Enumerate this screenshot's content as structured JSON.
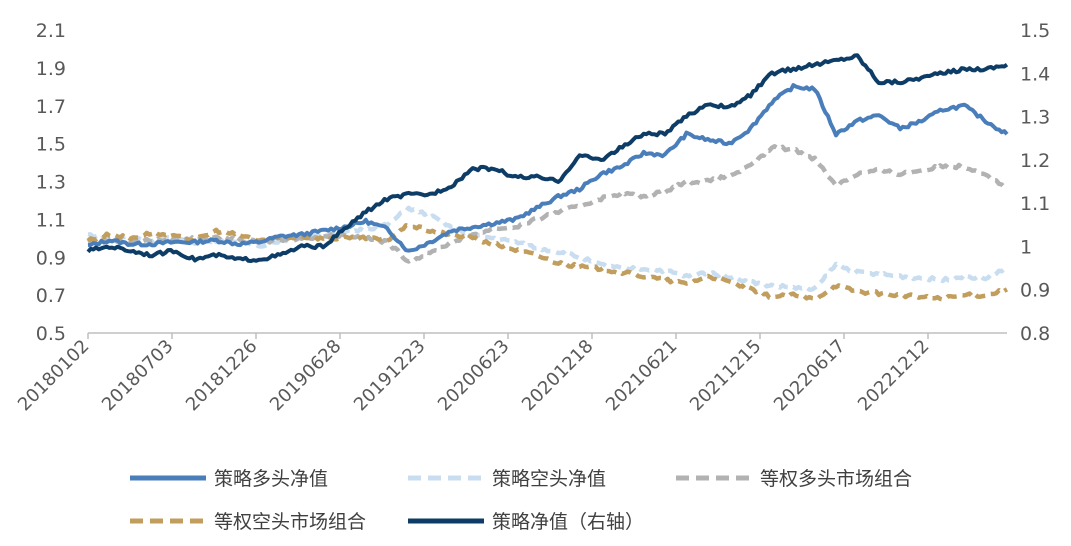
{
  "chart_data": {
    "type": "line",
    "title": "",
    "xlabel": "",
    "ylabel": "",
    "x_tick_labels": [
      "20180102",
      "20180703",
      "20181226",
      "20190628",
      "20191223",
      "20200623",
      "20201218",
      "20210621",
      "20211215",
      "20220617",
      "20221212"
    ],
    "y_left": {
      "ylim": [
        0.5,
        2.1
      ],
      "ticks": [
        "2.1",
        "1.9",
        "1.7",
        "1.5",
        "1.3",
        "1.1",
        "0.9",
        "0.7",
        "0.5"
      ]
    },
    "y_right": {
      "ylim": [
        0.8,
        1.5
      ],
      "ticks": [
        "1.5",
        "1.4",
        "1.3",
        "1.2",
        "1.1",
        "1",
        "0.9",
        "0.8"
      ]
    },
    "grid": false,
    "legend_position": "bottom",
    "series": [
      {
        "name": "策略多头净值",
        "axis": "left",
        "color": "#4a7ebb",
        "style": "solid",
        "values": [
          0.96,
          0.99,
          0.97,
          0.97,
          0.98,
          0.98,
          0.99,
          0.97,
          0.98,
          1.01,
          1.02,
          1.04,
          1.06,
          1.09,
          1.05,
          0.93,
          0.98,
          1.04,
          1.06,
          1.08,
          1.1,
          1.16,
          1.22,
          1.26,
          1.34,
          1.38,
          1.45,
          1.44,
          1.55,
          1.52,
          1.5,
          1.58,
          1.72,
          1.8,
          1.79,
          1.55,
          1.62,
          1.65,
          1.58,
          1.62,
          1.68,
          1.7,
          1.62,
          1.55
        ]
      },
      {
        "name": "策略空头净值",
        "axis": "left",
        "color": "#c9ddf0",
        "style": "dashed",
        "values": [
          1.02,
          1.0,
          1.01,
          0.99,
          1.0,
          0.98,
          0.99,
          0.98,
          0.96,
          0.99,
          1.01,
          1.02,
          1.03,
          1.05,
          1.07,
          1.16,
          1.12,
          1.06,
          1.02,
          1.0,
          0.98,
          0.95,
          0.93,
          0.9,
          0.86,
          0.84,
          0.84,
          0.83,
          0.8,
          0.82,
          0.8,
          0.77,
          0.75,
          0.74,
          0.73,
          0.86,
          0.82,
          0.81,
          0.8,
          0.79,
          0.78,
          0.8,
          0.79,
          0.84
        ]
      },
      {
        "name": "等权多头市场组合",
        "axis": "left",
        "color": "#b2b2b2",
        "style": "dashed",
        "values": [
          0.98,
          0.99,
          0.98,
          0.99,
          0.99,
          1.0,
          1.01,
          0.99,
          0.98,
          0.99,
          1.0,
          1.01,
          1.02,
          1.0,
          0.98,
          0.88,
          0.92,
          0.98,
          1.02,
          1.05,
          1.06,
          1.1,
          1.14,
          1.17,
          1.21,
          1.24,
          1.22,
          1.25,
          1.3,
          1.3,
          1.33,
          1.38,
          1.48,
          1.47,
          1.42,
          1.28,
          1.34,
          1.36,
          1.34,
          1.36,
          1.38,
          1.38,
          1.34,
          1.26
        ]
      },
      {
        "name": "等权空头市场组合",
        "axis": "left",
        "color": "#c19e5e",
        "style": "dashed",
        "values": [
          0.99,
          1.02,
          1.0,
          1.03,
          1.01,
          0.99,
          1.04,
          1.02,
          0.99,
          1.0,
          1.01,
          1.0,
          1.0,
          1.0,
          0.99,
          1.07,
          1.04,
          1.02,
          1.0,
          0.97,
          0.94,
          0.91,
          0.87,
          0.85,
          0.84,
          0.82,
          0.8,
          0.78,
          0.76,
          0.8,
          0.77,
          0.73,
          0.69,
          0.7,
          0.68,
          0.75,
          0.72,
          0.71,
          0.7,
          0.69,
          0.68,
          0.7,
          0.7,
          0.73
        ]
      },
      {
        "name": "策略净值（右轴）",
        "axis": "right",
        "color": "#0d3d66",
        "style": "solid",
        "values": [
          0.99,
          1.0,
          0.99,
          0.98,
          0.99,
          0.97,
          0.98,
          0.97,
          0.97,
          0.98,
          1.0,
          1.0,
          1.04,
          1.08,
          1.11,
          1.12,
          1.12,
          1.14,
          1.18,
          1.18,
          1.16,
          1.16,
          1.15,
          1.21,
          1.2,
          1.23,
          1.26,
          1.26,
          1.3,
          1.33,
          1.32,
          1.35,
          1.4,
          1.41,
          1.42,
          1.43,
          1.44,
          1.38,
          1.38,
          1.39,
          1.4,
          1.41,
          1.41,
          1.42
        ]
      }
    ]
  }
}
